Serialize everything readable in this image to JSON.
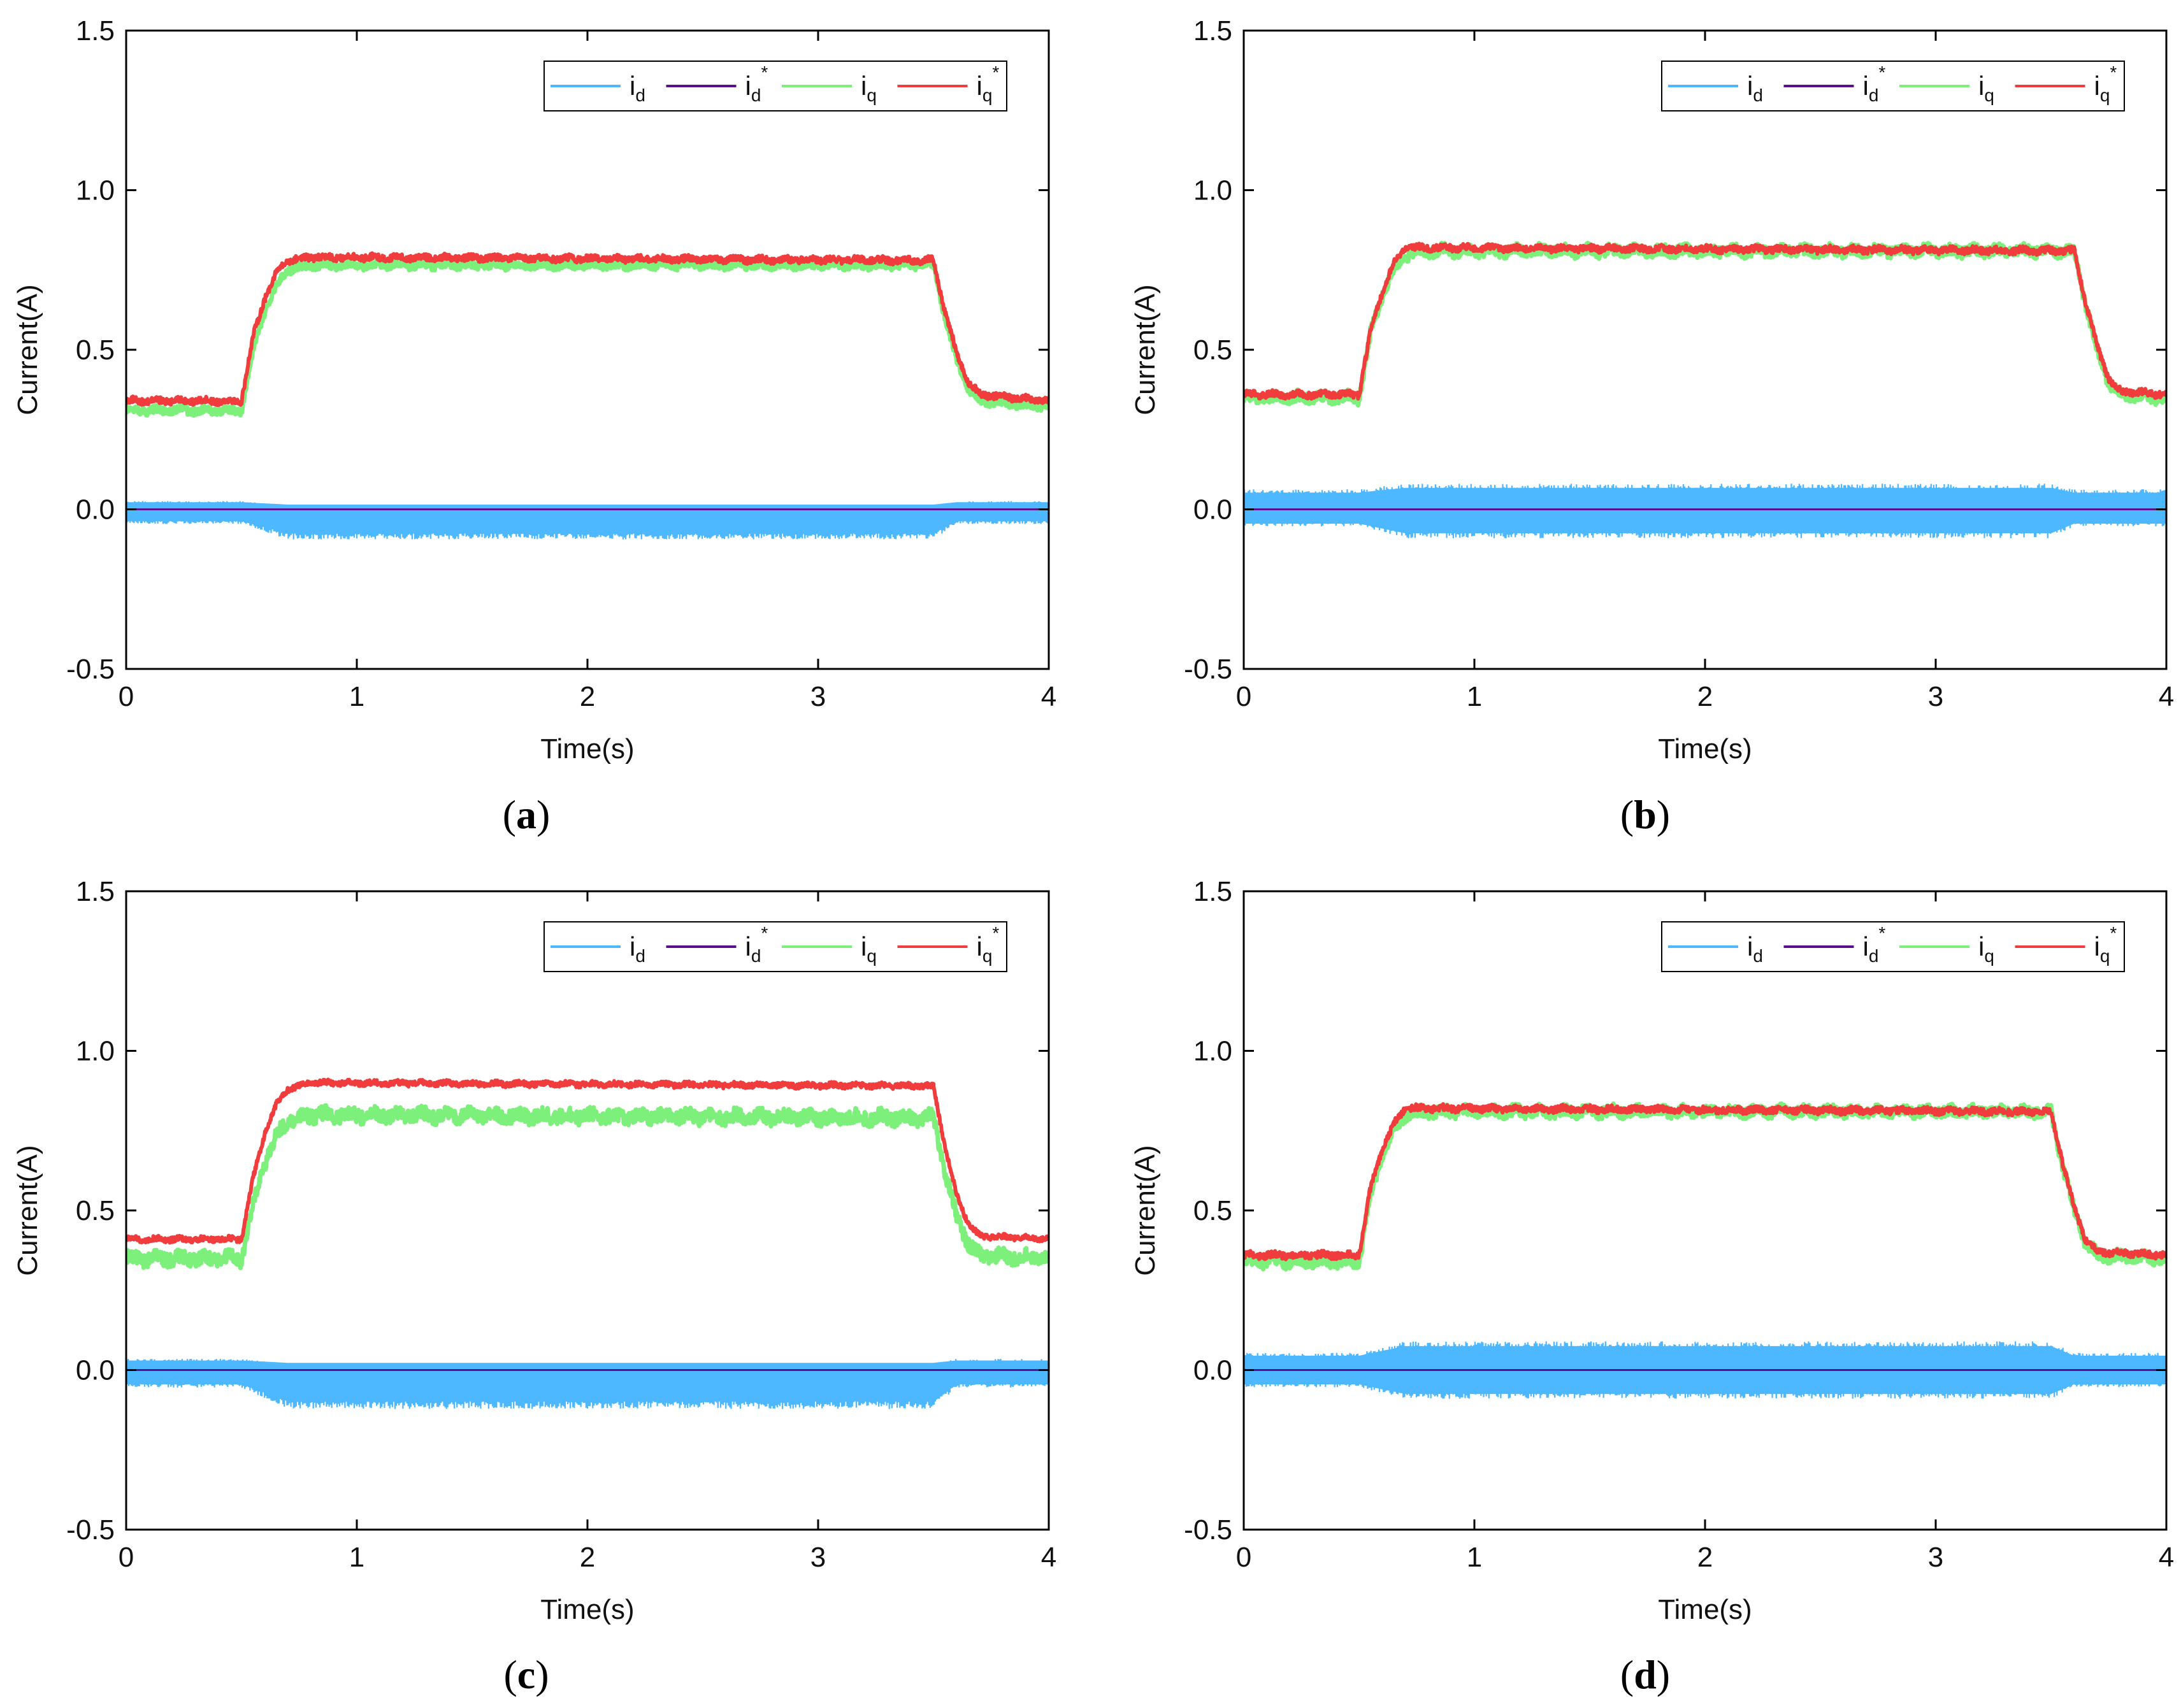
{
  "figure": {
    "background": "#ffffff"
  },
  "series_colors": {
    "id": "#4db8ff",
    "id_ref": "#5a0f8c",
    "iq": "#7cf07a",
    "iq_ref": "#f03c3c"
  },
  "chart_data": [
    {
      "type": "line",
      "panel": "a",
      "caption_letter": "a",
      "xlabel": "Time(s)",
      "ylabel": "Current(A)",
      "xlim": [
        0,
        4
      ],
      "ylim": [
        -0.5,
        1.5
      ],
      "xticks": [
        "0",
        "1",
        "2",
        "3",
        "4"
      ],
      "yticks": [
        "-0.5",
        "0.0",
        "0.5",
        "1.0",
        "1.5"
      ],
      "legend": {
        "position": "top-right",
        "entries": [
          {
            "base": "i",
            "sub": "d",
            "sup": ""
          },
          {
            "base": "i",
            "sub": "d",
            "sup": "*"
          },
          {
            "base": "i",
            "sub": "q",
            "sup": ""
          },
          {
            "base": "i",
            "sub": "q",
            "sup": "*"
          }
        ]
      },
      "series": [
        {
          "name": "id",
          "kind": "band",
          "x": [
            0,
            0.5,
            0.7,
            3.5,
            3.6,
            4
          ],
          "upper": [
            0.03,
            0.03,
            0.02,
            0.02,
            0.03,
            0.03
          ],
          "lower": [
            -0.05,
            -0.05,
            -0.1,
            -0.1,
            -0.05,
            -0.05
          ]
        },
        {
          "name": "id*",
          "kind": "line",
          "x": [
            0,
            4
          ],
          "y": [
            0,
            0
          ]
        },
        {
          "name": "iq",
          "kind": "noisy",
          "x": [
            0,
            0.5,
            0.55,
            0.6,
            0.65,
            0.7,
            0.8,
            3.5,
            3.55,
            3.6,
            3.65,
            3.7,
            4
          ],
          "y": [
            0.31,
            0.31,
            0.5,
            0.62,
            0.7,
            0.75,
            0.765,
            0.765,
            0.6,
            0.47,
            0.38,
            0.34,
            0.32
          ],
          "noise": 0.012
        },
        {
          "name": "iq*",
          "kind": "noisy",
          "x": [
            0,
            0.5,
            0.55,
            0.6,
            0.65,
            0.7,
            0.8,
            3.5,
            3.55,
            3.6,
            3.65,
            3.7,
            4
          ],
          "y": [
            0.34,
            0.34,
            0.54,
            0.66,
            0.74,
            0.78,
            0.79,
            0.78,
            0.62,
            0.49,
            0.4,
            0.36,
            0.34
          ],
          "noise": 0.01
        }
      ]
    },
    {
      "type": "line",
      "panel": "b",
      "caption_letter": "b",
      "xlabel": "Time(s)",
      "ylabel": "Current(A)",
      "xlim": [
        0,
        4
      ],
      "ylim": [
        -0.5,
        1.5
      ],
      "xticks": [
        "0",
        "1",
        "2",
        "3",
        "4"
      ],
      "yticks": [
        "-0.5",
        "0.0",
        "0.5",
        "1.0",
        "1.5"
      ],
      "legend": {
        "position": "top-right",
        "entries": [
          {
            "base": "i",
            "sub": "d",
            "sup": ""
          },
          {
            "base": "i",
            "sub": "d",
            "sup": "*"
          },
          {
            "base": "i",
            "sub": "q",
            "sup": ""
          },
          {
            "base": "i",
            "sub": "q",
            "sup": "*"
          }
        ]
      },
      "series": [
        {
          "name": "id",
          "kind": "band",
          "x": [
            0,
            0.5,
            0.7,
            3.5,
            3.6,
            4
          ],
          "upper": [
            0.07,
            0.07,
            0.09,
            0.09,
            0.07,
            0.07
          ],
          "lower": [
            -0.06,
            -0.06,
            -0.1,
            -0.1,
            -0.06,
            -0.06
          ]
        },
        {
          "name": "id*",
          "kind": "line",
          "x": [
            0,
            4
          ],
          "y": [
            0,
            0
          ]
        },
        {
          "name": "iq",
          "kind": "noisy",
          "x": [
            0,
            0.5,
            0.55,
            0.6,
            0.65,
            0.7,
            0.8,
            3.6,
            3.65,
            3.7,
            3.75,
            3.8,
            4
          ],
          "y": [
            0.35,
            0.35,
            0.55,
            0.67,
            0.75,
            0.8,
            0.81,
            0.81,
            0.64,
            0.5,
            0.4,
            0.36,
            0.35
          ],
          "noise": 0.018
        },
        {
          "name": "iq*",
          "kind": "noisy",
          "x": [
            0,
            0.5,
            0.55,
            0.6,
            0.65,
            0.7,
            0.8,
            3.6,
            3.65,
            3.7,
            3.75,
            3.8,
            4
          ],
          "y": [
            0.36,
            0.36,
            0.56,
            0.68,
            0.77,
            0.82,
            0.82,
            0.81,
            0.65,
            0.51,
            0.41,
            0.37,
            0.36
          ],
          "noise": 0.01
        }
      ]
    },
    {
      "type": "line",
      "panel": "c",
      "caption_letter": "c",
      "xlabel": "Time(s)",
      "ylabel": "Current(A)",
      "xlim": [
        0,
        4
      ],
      "ylim": [
        -0.5,
        1.5
      ],
      "xticks": [
        "0",
        "1",
        "2",
        "3",
        "4"
      ],
      "yticks": [
        "-0.5",
        "0.0",
        "0.5",
        "1.0",
        "1.5"
      ],
      "legend": {
        "position": "top-right",
        "entries": [
          {
            "base": "i",
            "sub": "d",
            "sup": ""
          },
          {
            "base": "i",
            "sub": "d",
            "sup": "*"
          },
          {
            "base": "i",
            "sub": "q",
            "sup": ""
          },
          {
            "base": "i",
            "sub": "q",
            "sup": "*"
          }
        ]
      },
      "series": [
        {
          "name": "id",
          "kind": "band",
          "x": [
            0,
            0.5,
            0.7,
            3.5,
            3.6,
            4
          ],
          "upper": [
            0.04,
            0.04,
            0.03,
            0.03,
            0.04,
            0.04
          ],
          "lower": [
            -0.06,
            -0.06,
            -0.13,
            -0.13,
            -0.06,
            -0.06
          ]
        },
        {
          "name": "id*",
          "kind": "line",
          "x": [
            0,
            4
          ],
          "y": [
            0,
            0
          ]
        },
        {
          "name": "iq",
          "kind": "noisy",
          "x": [
            0,
            0.5,
            0.55,
            0.6,
            0.65,
            0.7,
            0.8,
            3.5,
            3.55,
            3.6,
            3.65,
            3.7,
            4
          ],
          "y": [
            0.35,
            0.35,
            0.52,
            0.65,
            0.73,
            0.78,
            0.8,
            0.79,
            0.62,
            0.48,
            0.4,
            0.36,
            0.35
          ],
          "noise": 0.022
        },
        {
          "name": "iq*",
          "kind": "noisy",
          "x": [
            0,
            0.5,
            0.55,
            0.6,
            0.65,
            0.7,
            0.8,
            3.5,
            3.55,
            3.6,
            3.65,
            3.7,
            4
          ],
          "y": [
            0.41,
            0.41,
            0.6,
            0.74,
            0.83,
            0.88,
            0.9,
            0.89,
            0.7,
            0.55,
            0.46,
            0.42,
            0.41
          ],
          "noise": 0.008
        }
      ]
    },
    {
      "type": "line",
      "panel": "d",
      "caption_letter": "d",
      "xlabel": "Time(s)",
      "ylabel": "Current(A)",
      "xlim": [
        0,
        4
      ],
      "ylim": [
        -0.5,
        1.5
      ],
      "xticks": [
        "0",
        "1",
        "2",
        "3",
        "4"
      ],
      "yticks": [
        "-0.5",
        "0.0",
        "0.5",
        "1.0",
        "1.5"
      ],
      "legend": {
        "position": "top-right",
        "entries": [
          {
            "base": "i",
            "sub": "d",
            "sup": ""
          },
          {
            "base": "i",
            "sub": "d",
            "sup": "*"
          },
          {
            "base": "i",
            "sub": "q",
            "sup": ""
          },
          {
            "base": "i",
            "sub": "q",
            "sup": "*"
          }
        ]
      },
      "series": [
        {
          "name": "id",
          "kind": "band",
          "x": [
            0,
            0.5,
            0.7,
            3.5,
            3.6,
            4
          ],
          "upper": [
            0.06,
            0.06,
            0.1,
            0.1,
            0.06,
            0.06
          ],
          "lower": [
            -0.06,
            -0.06,
            -0.1,
            -0.1,
            -0.06,
            -0.06
          ]
        },
        {
          "name": "id*",
          "kind": "line",
          "x": [
            0,
            4
          ],
          "y": [
            0,
            0
          ]
        },
        {
          "name": "iq",
          "kind": "noisy",
          "x": [
            0,
            0.5,
            0.55,
            0.6,
            0.65,
            0.7,
            0.8,
            3.5,
            3.55,
            3.6,
            3.65,
            3.7,
            4
          ],
          "y": [
            0.34,
            0.34,
            0.55,
            0.67,
            0.75,
            0.8,
            0.81,
            0.81,
            0.64,
            0.5,
            0.4,
            0.36,
            0.35
          ],
          "noise": 0.018
        },
        {
          "name": "iq*",
          "kind": "noisy",
          "x": [
            0,
            0.5,
            0.55,
            0.6,
            0.65,
            0.7,
            0.8,
            3.5,
            3.55,
            3.6,
            3.65,
            3.7,
            4
          ],
          "y": [
            0.36,
            0.36,
            0.57,
            0.69,
            0.77,
            0.82,
            0.82,
            0.81,
            0.65,
            0.51,
            0.41,
            0.37,
            0.36
          ],
          "noise": 0.01
        }
      ]
    }
  ]
}
